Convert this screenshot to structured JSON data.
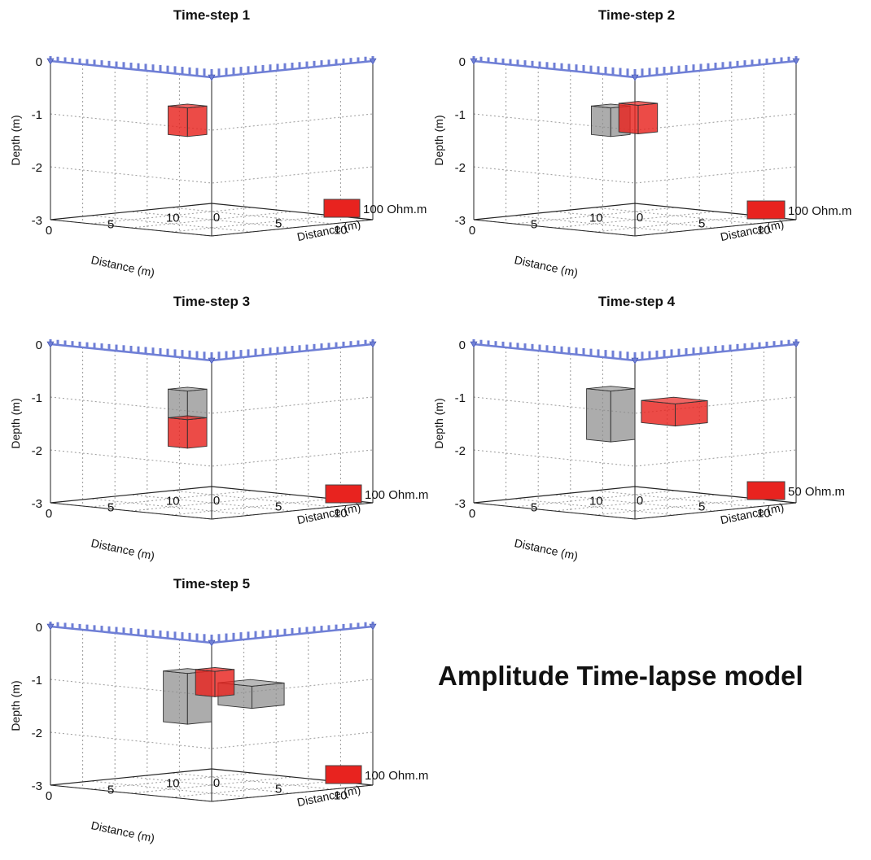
{
  "main_title": "Amplitude Time-lapse model",
  "axes": {
    "depth_label": "Depth (m)",
    "depth_ticks": [
      "0",
      "-1",
      "-2",
      "-3"
    ],
    "x_label": "Distance (m)",
    "x_ticks": [
      "0",
      "5",
      "10"
    ],
    "y_label": "Distance (m)",
    "y_ticks": [
      "0",
      "5",
      "10"
    ]
  },
  "colors": {
    "anomaly": "#e8231f",
    "previous": "#8c8c8c",
    "electrodes": "#6f7fd6"
  },
  "panels": [
    {
      "title": "Time-step 1",
      "legend": "100 Ohm.m"
    },
    {
      "title": "Time-step 2",
      "legend": "100 Ohm.m"
    },
    {
      "title": "Time-step 3",
      "legend": "100 Ohm.m"
    },
    {
      "title": "Time-step 4",
      "legend": "50 Ohm.m"
    },
    {
      "title": "Time-step 5",
      "legend": "100 Ohm.m"
    }
  ]
}
